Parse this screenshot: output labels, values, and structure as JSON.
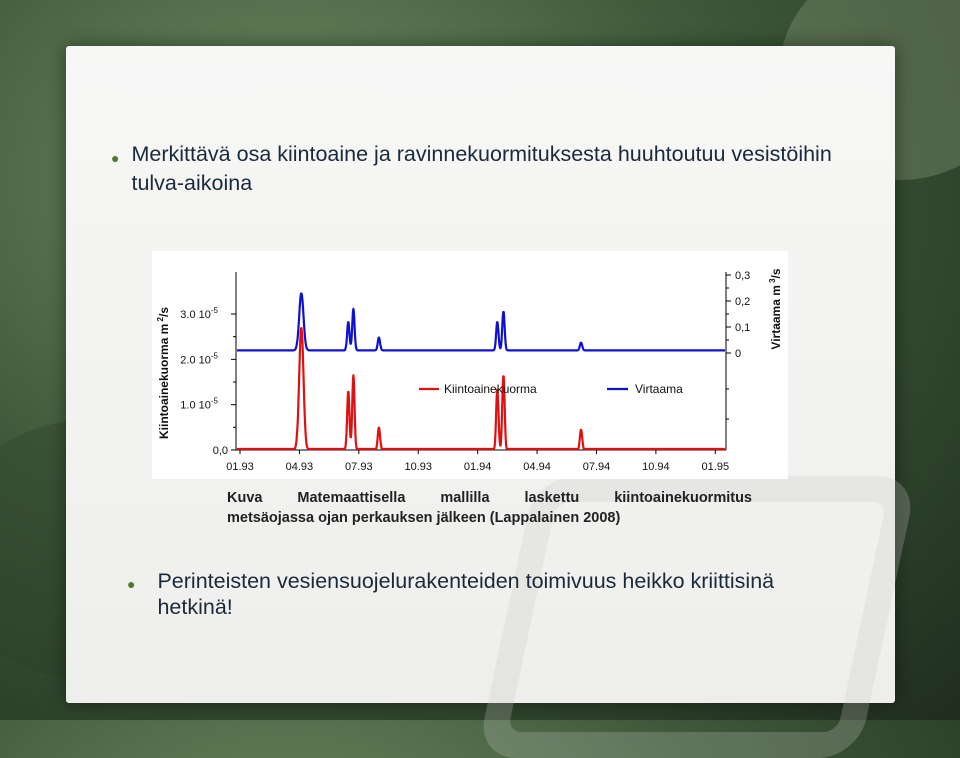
{
  "slide": {
    "bullets": [
      "Merkittävä osa kiintoaine ja ravinnekuormituksesta huuhtoutuu vesistöihin tulva-aikoina",
      "Perinteisten vesiensuojelurakenteiden toimivuus heikko kriittisinä hetkinä!"
    ],
    "caption_line1": "Kuva Matemaattisella mallilla laskettu kiintoainekuormitus",
    "caption_line2": "metsäojassa ojan perkauksen jälkeen (Lappalainen 2008)"
  },
  "colors": {
    "kiintoainekuorma": "#e01010",
    "virtaama": "#1010d0",
    "bullet": "#4f7a2a"
  },
  "chart_data": {
    "type": "line",
    "x_ticks": [
      "01.93",
      "04.93",
      "07.93",
      "10.93",
      "01.94",
      "04.94",
      "07.94",
      "10.94",
      "01.95"
    ],
    "x_range": [
      0,
      24
    ],
    "y_left_label_main": "Kiintoainekuorma m",
    "y_left_label_sup": "2",
    "y_left_label_tail": "/s",
    "y_left_ticks": [
      {
        "base": "3.0 10",
        "exp": "-5"
      },
      {
        "base": "2.0 10",
        "exp": "-5"
      },
      {
        "base": "1.0 10",
        "exp": "-5"
      },
      {
        "base": "0,0",
        "exp": ""
      }
    ],
    "y_right_label_main": "Virtaama m",
    "y_right_label_sup": "3",
    "y_right_label_tail": "/s",
    "y_right_ticks": [
      "0,3",
      "0,2",
      "0,1",
      "0"
    ],
    "y_right_range": [
      0,
      0.3
    ],
    "legend": [
      "Kiintoainekuorma",
      "Virtaama"
    ],
    "series": [
      {
        "name": "Kiintoainekuorma",
        "peaks": [
          {
            "x": 3.2,
            "y": 2.7e-05,
            "w": 0.22
          },
          {
            "x": 5.5,
            "y": 1.3e-05,
            "w": 0.12
          },
          {
            "x": 5.75,
            "y": 1.65e-05,
            "w": 0.12
          },
          {
            "x": 7.0,
            "y": 5e-06,
            "w": 0.12
          },
          {
            "x": 12.8,
            "y": 1.35e-05,
            "w": 0.12
          },
          {
            "x": 13.1,
            "y": 1.65e-05,
            "w": 0.12
          },
          {
            "x": 16.9,
            "y": 4.5e-06,
            "w": 0.12
          }
        ]
      },
      {
        "name": "Virtaama",
        "baseline": 0.01,
        "peaks": [
          {
            "x": 3.2,
            "y": 0.23,
            "w": 0.22
          },
          {
            "x": 5.5,
            "y": 0.12,
            "w": 0.12
          },
          {
            "x": 5.75,
            "y": 0.17,
            "w": 0.12
          },
          {
            "x": 7.0,
            "y": 0.06,
            "w": 0.12
          },
          {
            "x": 12.8,
            "y": 0.12,
            "w": 0.12
          },
          {
            "x": 13.1,
            "y": 0.16,
            "w": 0.12
          },
          {
            "x": 16.9,
            "y": 0.04,
            "w": 0.12
          }
        ]
      }
    ]
  }
}
